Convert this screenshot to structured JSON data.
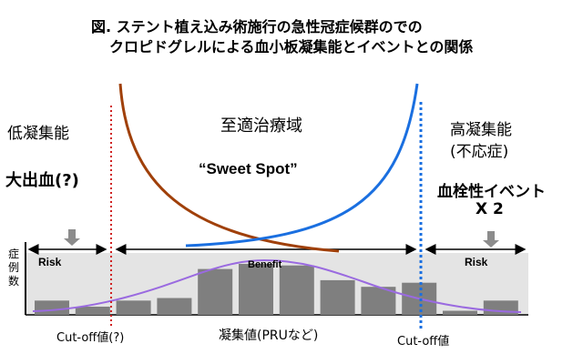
{
  "title": {
    "line1": "図. ステント植え込み術施行の急性冠症候群のでの",
    "line2": "クロピドグレルによる血小板凝集能とイベントとの関係"
  },
  "zones": {
    "low": {
      "label": "低凝集能",
      "outcome": "大出血(?)",
      "risk": "Risk"
    },
    "optimal": {
      "label": "至適治療域",
      "sweet_spot": "“Sweet Spot”",
      "benefit": "Benefit"
    },
    "high": {
      "label": "高凝集能",
      "sublabel": "(不応症)",
      "outcome": "血栓性イベント",
      "multiplier": "X 2",
      "risk": "Risk"
    }
  },
  "axes": {
    "y_label": "症例数",
    "x_label": "凝集値(PRUなど)",
    "cutoff_low": "Cut-off値(?)",
    "cutoff_high": "Cut-off値"
  },
  "histogram_levels": [
    0.28,
    0.16,
    0.28,
    0.33,
    0.9,
    1.0,
    0.97,
    0.68,
    0.55,
    0.63,
    0.08,
    0.28
  ],
  "colors": {
    "brown_curve": "#a0400a",
    "blue_curve": "#1a6fe0",
    "purple_curve": "#9a6ae0",
    "red_cutoff": "#d02020",
    "blue_cutoff": "#1a6fe0",
    "bar_fill": "#7f7f7f",
    "plot_bg": "#e4e4e4"
  }
}
